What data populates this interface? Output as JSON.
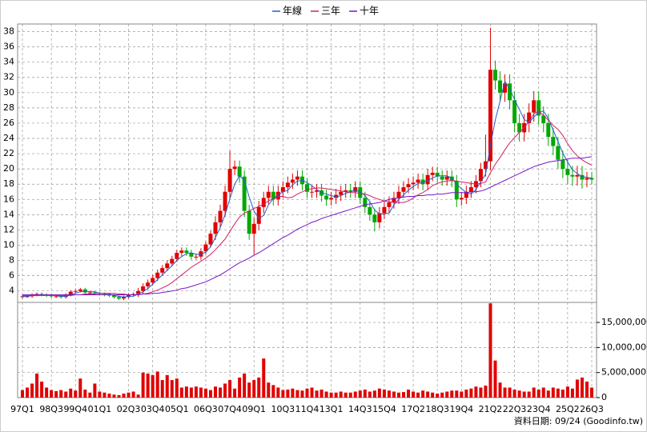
{
  "chart_data": {
    "type": "candlestick",
    "legend_position": "top",
    "grid": true,
    "source": "資料日期: 09/24  (Goodinfo.tw)",
    "categories": [
      "97Q1",
      null,
      null,
      null,
      null,
      null,
      "98Q3",
      null,
      null,
      null,
      null,
      "99Q4",
      null,
      null,
      null,
      null,
      "01Q1",
      null,
      null,
      null,
      null,
      null,
      "02Q3",
      null,
      null,
      null,
      null,
      "03Q4",
      null,
      null,
      null,
      null,
      "05Q1",
      null,
      null,
      null,
      null,
      null,
      "06Q3",
      null,
      null,
      null,
      null,
      "07Q4",
      null,
      null,
      null,
      null,
      "09Q1",
      null,
      null,
      null,
      null,
      null,
      "10Q3",
      null,
      null,
      null,
      null,
      "11Q4",
      null,
      null,
      null,
      null,
      "13Q1",
      null,
      null,
      null,
      null,
      null,
      "14Q3",
      null,
      null,
      null,
      null,
      "15Q4",
      null,
      null,
      null,
      null,
      null,
      "17Q2",
      null,
      null,
      null,
      null,
      "18Q3",
      null,
      null,
      null,
      null,
      "19Q4",
      null,
      null,
      null,
      null,
      null,
      "21Q2",
      null,
      null,
      null,
      null,
      "22Q3",
      null,
      null,
      null,
      null,
      "23Q4",
      null,
      null,
      null,
      null,
      null,
      "25Q2",
      null,
      null,
      null,
      null,
      "26Q3"
    ],
    "ylim": [
      2.5,
      39
    ],
    "yticks": [
      4,
      6,
      8,
      10,
      12,
      14,
      16,
      18,
      20,
      22,
      24,
      26,
      28,
      30,
      32,
      34,
      36,
      38
    ],
    "ohlc": {
      "up_color": "#e00000",
      "down_color": "#00a800",
      "open": [
        3.2,
        3.3,
        3.3,
        3.5,
        3.6,
        3.5,
        3.4,
        3.3,
        3.3,
        3.2,
        3.5,
        3.9,
        4.0,
        4.2,
        3.8,
        3.8,
        3.7,
        3.6,
        3.5,
        3.4,
        3.2,
        3.0,
        3.2,
        3.5,
        3.6,
        4.0,
        4.6,
        5.1,
        5.7,
        6.4,
        7.0,
        7.6,
        8.2,
        9.0,
        9.3,
        9.0,
        8.5,
        8.5,
        9.2,
        10.1,
        11.5,
        13.0,
        14.5,
        17.0,
        20.0,
        20.3,
        19.0,
        14.5,
        11.5,
        12.8,
        15.0,
        16.2,
        17.0,
        16.0,
        17.0,
        17.6,
        18.2,
        18.6,
        19.0,
        18.0,
        17.0,
        17.0,
        17.2,
        16.5,
        16.0,
        16.2,
        16.6,
        17.0,
        17.2,
        17.0,
        17.6,
        16.2,
        15.0,
        14.0,
        13.0,
        14.2,
        15.0,
        15.6,
        16.2,
        17.0,
        17.6,
        18.0,
        18.2,
        18.6,
        18.0,
        19.2,
        19.5,
        19.0,
        18.6,
        19.0,
        18.4,
        16.0,
        16.2,
        17.0,
        17.6,
        18.4,
        20.0,
        21.0,
        33.0,
        31.6,
        30.0,
        31.2,
        29.0,
        26.0,
        24.8,
        26.0,
        27.4,
        29.0,
        27.0,
        26.0,
        24.2,
        23.0,
        21.2,
        20.0,
        19.2,
        19.0,
        19.2,
        18.6,
        18.8
      ],
      "high": [
        3.5,
        3.5,
        3.7,
        3.8,
        3.8,
        3.7,
        3.6,
        3.5,
        3.5,
        3.7,
        4.1,
        4.2,
        4.4,
        4.4,
        4.0,
        4.0,
        3.9,
        3.8,
        3.7,
        3.6,
        3.4,
        3.4,
        3.7,
        3.8,
        4.4,
        5.0,
        5.5,
        6.1,
        6.8,
        7.4,
        8.0,
        8.6,
        9.4,
        9.7,
        9.7,
        9.4,
        8.9,
        9.6,
        10.5,
        11.9,
        13.8,
        15.3,
        17.8,
        22.4,
        21.1,
        21.1,
        19.8,
        15.3,
        13.6,
        15.8,
        17.0,
        17.8,
        17.8,
        17.8,
        18.4,
        19.0,
        19.4,
        19.8,
        19.8,
        18.8,
        17.8,
        18.0,
        18.0,
        17.3,
        17.0,
        17.4,
        17.8,
        18.0,
        18.0,
        18.4,
        18.4,
        17.0,
        15.8,
        14.8,
        15.0,
        15.8,
        16.4,
        17.0,
        17.8,
        18.4,
        18.8,
        19.0,
        19.4,
        19.4,
        20.0,
        20.3,
        20.3,
        19.8,
        19.8,
        19.8,
        19.2,
        17.0,
        17.8,
        18.4,
        19.2,
        20.8,
        24.5,
        38.5,
        34.2,
        32.8,
        32.4,
        32.4,
        30.2,
        27.2,
        27.2,
        28.6,
        30.2,
        30.2,
        28.2,
        27.2,
        25.4,
        24.2,
        22.4,
        21.2,
        20.4,
        20.4,
        20.4,
        19.6,
        19.6
      ],
      "low": [
        3.0,
        3.1,
        3.1,
        3.3,
        3.3,
        3.2,
        3.1,
        3.1,
        3.0,
        3.0,
        3.3,
        3.7,
        3.8,
        3.6,
        3.6,
        3.5,
        3.4,
        3.3,
        3.2,
        3.0,
        2.8,
        2.8,
        3.0,
        3.3,
        3.2,
        3.6,
        4.2,
        4.7,
        5.3,
        6.0,
        6.6,
        7.2,
        7.8,
        8.6,
        8.6,
        8.1,
        8.1,
        8.1,
        8.8,
        9.7,
        10.7,
        12.2,
        13.7,
        16.2,
        19.2,
        18.2,
        13.7,
        10.7,
        8.8,
        12.0,
        14.2,
        15.4,
        15.2,
        15.2,
        16.2,
        16.8,
        17.4,
        17.8,
        17.2,
        16.2,
        16.2,
        16.2,
        15.7,
        15.2,
        15.2,
        15.4,
        15.8,
        16.2,
        16.2,
        16.2,
        15.4,
        14.2,
        13.2,
        11.8,
        12.2,
        13.4,
        14.2,
        14.8,
        15.4,
        16.2,
        16.8,
        17.2,
        17.4,
        17.2,
        17.2,
        18.4,
        18.2,
        17.8,
        17.8,
        17.6,
        15.0,
        15.2,
        15.4,
        16.2,
        16.8,
        17.6,
        19.0,
        19.8,
        30.4,
        28.8,
        28.8,
        27.8,
        24.8,
        23.6,
        23.6,
        24.8,
        26.2,
        25.8,
        24.8,
        23.0,
        21.8,
        20.0,
        18.8,
        18.0,
        17.8,
        17.8,
        17.4,
        17.6,
        18.0
      ],
      "close": [
        3.3,
        3.3,
        3.5,
        3.6,
        3.5,
        3.4,
        3.3,
        3.3,
        3.2,
        3.5,
        3.9,
        4.0,
        4.2,
        3.8,
        3.8,
        3.7,
        3.6,
        3.5,
        3.4,
        3.2,
        3.0,
        3.2,
        3.5,
        3.6,
        4.0,
        4.6,
        5.1,
        5.7,
        6.4,
        7.0,
        7.6,
        8.2,
        9.0,
        9.3,
        9.0,
        8.5,
        8.5,
        9.2,
        10.1,
        11.5,
        13.0,
        14.5,
        17.0,
        20.0,
        20.3,
        19.0,
        14.5,
        11.5,
        12.8,
        15.0,
        16.2,
        17.0,
        16.0,
        17.0,
        17.6,
        18.2,
        18.6,
        19.0,
        18.0,
        17.0,
        17.0,
        17.2,
        16.5,
        16.0,
        16.2,
        16.6,
        17.0,
        17.2,
        17.0,
        17.6,
        16.2,
        15.0,
        14.0,
        13.0,
        14.2,
        15.0,
        15.6,
        16.2,
        17.0,
        17.6,
        18.0,
        18.2,
        18.6,
        18.0,
        19.2,
        19.5,
        19.0,
        18.6,
        19.0,
        18.4,
        16.0,
        16.2,
        17.0,
        17.6,
        18.4,
        20.0,
        21.0,
        33.0,
        31.6,
        30.0,
        31.2,
        29.0,
        26.0,
        24.8,
        26.0,
        27.4,
        29.0,
        27.0,
        26.0,
        24.2,
        23.0,
        21.2,
        20.0,
        19.2,
        19.0,
        19.2,
        18.6,
        18.8,
        18.6
      ]
    },
    "series": [
      {
        "name": "年線",
        "color": "#1f5fd0",
        "values": [
          3.3,
          3.3,
          3.4,
          3.4,
          3.5,
          3.5,
          3.5,
          3.4,
          3.3,
          3.3,
          3.5,
          3.7,
          3.9,
          4.0,
          3.9,
          3.9,
          3.7,
          3.7,
          3.6,
          3.4,
          3.3,
          3.2,
          3.3,
          3.3,
          3.6,
          3.9,
          4.3,
          4.9,
          5.5,
          6.1,
          6.7,
          7.3,
          8.0,
          8.5,
          8.9,
          9.0,
          8.8,
          8.8,
          9.1,
          9.8,
          11.0,
          12.3,
          14.0,
          16.1,
          18.0,
          19.1,
          18.5,
          16.3,
          14.5,
          13.5,
          13.9,
          15.3,
          16.1,
          16.6,
          17.0,
          17.2,
          17.9,
          18.4,
          18.5,
          18.2,
          17.8,
          17.3,
          16.9,
          16.7,
          16.5,
          16.3,
          16.5,
          16.8,
          17.0,
          17.2,
          17.0,
          16.5,
          15.7,
          14.6,
          14.1,
          14.1,
          14.2,
          15.3,
          16.0,
          16.6,
          17.2,
          17.7,
          18.1,
          18.2,
          18.5,
          18.8,
          19.1,
          19.1,
          19.1,
          18.8,
          18.0,
          17.4,
          16.9,
          16.7,
          17.3,
          18.3,
          19.3,
          23.1,
          26.4,
          28.9,
          31.5,
          30.5,
          29.1,
          27.8,
          26.5,
          26.1,
          26.8,
          27.4,
          27.6,
          26.6,
          25.1,
          23.6,
          22.1,
          20.9,
          19.9,
          19.4,
          19.0,
          18.9,
          18.8
        ]
      },
      {
        "name": "三年",
        "color": "#d0206a",
        "values": [
          3.4,
          3.4,
          3.4,
          3.4,
          3.4,
          3.4,
          3.4,
          3.4,
          3.4,
          3.4,
          3.4,
          3.5,
          3.5,
          3.6,
          3.6,
          3.6,
          3.7,
          3.7,
          3.7,
          3.7,
          3.6,
          3.6,
          3.5,
          3.5,
          3.5,
          3.6,
          3.7,
          3.9,
          4.1,
          4.4,
          4.7,
          5.1,
          5.6,
          6.1,
          6.6,
          7.1,
          7.5,
          7.9,
          8.3,
          8.8,
          9.4,
          10.1,
          10.8,
          11.8,
          12.8,
          13.7,
          14.2,
          14.5,
          14.8,
          15.1,
          15.4,
          15.8,
          16.1,
          16.4,
          16.4,
          16.2,
          16.3,
          16.7,
          17.0,
          17.3,
          17.4,
          17.5,
          17.5,
          17.4,
          17.3,
          17.2,
          17.1,
          17.0,
          16.9,
          16.9,
          16.8,
          16.7,
          16.5,
          16.2,
          16.0,
          15.8,
          15.7,
          15.6,
          15.6,
          15.6,
          15.8,
          16.2,
          16.6,
          16.9,
          17.3,
          17.8,
          18.1,
          18.3,
          18.4,
          18.5,
          18.4,
          18.3,
          18.2,
          18.1,
          18.0,
          18.1,
          18.3,
          19.5,
          20.6,
          21.5,
          22.5,
          23.4,
          24.1,
          24.8,
          25.4,
          26.2,
          27.2,
          27.6,
          27.0,
          26.4,
          25.7,
          25.2,
          24.4,
          23.3,
          22.4,
          21.7,
          21.2,
          20.8,
          20.5
        ]
      },
      {
        "name": "十年",
        "color": "#7a18c8",
        "values": [
          3.5,
          3.5,
          3.5,
          3.5,
          3.5,
          3.5,
          3.5,
          3.5,
          3.5,
          3.5,
          3.5,
          3.5,
          3.5,
          3.5,
          3.5,
          3.5,
          3.5,
          3.5,
          3.5,
          3.5,
          3.5,
          3.5,
          3.5,
          3.5,
          3.5,
          3.6,
          3.6,
          3.7,
          3.7,
          3.8,
          3.9,
          4.0,
          4.1,
          4.3,
          4.4,
          4.6,
          4.8,
          5.0,
          5.2,
          5.5,
          5.8,
          6.1,
          6.5,
          6.9,
          7.3,
          7.7,
          8.0,
          8.3,
          8.7,
          9.0,
          9.4,
          9.8,
          10.2,
          10.6,
          11.0,
          11.3,
          11.7,
          12.1,
          12.4,
          12.7,
          13.0,
          13.2,
          13.5,
          13.7,
          13.9,
          14.1,
          14.3,
          14.5,
          14.7,
          14.9,
          15.1,
          15.3,
          15.4,
          15.5,
          15.6,
          15.8,
          16.0,
          16.1,
          16.2,
          16.3,
          16.4,
          16.4,
          16.5,
          16.5,
          16.6,
          16.6,
          16.7,
          16.7,
          16.8,
          16.9,
          16.9,
          16.9,
          16.9,
          17.0,
          17.0,
          17.1,
          17.3,
          17.6,
          17.9,
          18.2,
          18.5,
          18.8,
          19.1,
          19.4,
          19.7,
          20.0,
          20.3,
          20.5,
          20.7,
          20.9,
          21.0,
          21.1,
          21.2,
          21.3,
          21.4,
          21.4,
          21.4,
          21.5,
          21.6
        ]
      }
    ],
    "volume": {
      "color": "#e00000",
      "ylim": [
        0,
        19000000
      ],
      "yticks": [
        0,
        {
          "value": 5000000,
          "label": "5,000,000"
        },
        {
          "value": 10000000,
          "label": "10,000,000"
        },
        {
          "value": 15000000,
          "label": "15,000,000"
        }
      ],
      "values": [
        1500000,
        2000000,
        2800000,
        4800000,
        3200000,
        2000000,
        1500000,
        1300000,
        1500000,
        1200000,
        1800000,
        1400000,
        3800000,
        1600000,
        1000000,
        2800000,
        1200000,
        1000000,
        800000,
        600000,
        500000,
        800000,
        1000000,
        1200000,
        600000,
        5000000,
        4800000,
        4500000,
        5200000,
        3500000,
        4500000,
        3500000,
        3800000,
        2000000,
        2200000,
        2000000,
        2200000,
        2000000,
        1800000,
        1500000,
        2200000,
        2000000,
        2800000,
        3500000,
        1800000,
        4000000,
        4800000,
        3000000,
        3500000,
        4000000,
        7800000,
        3000000,
        2500000,
        2000000,
        1500000,
        1600000,
        1800000,
        1500000,
        1400000,
        1800000,
        2000000,
        1400000,
        1600000,
        1200000,
        1000000,
        1000000,
        1200000,
        1000000,
        1000000,
        1200000,
        1400000,
        1600000,
        1200000,
        1400000,
        1800000,
        1600000,
        1400000,
        1200000,
        1000000,
        1100000,
        1600000,
        1200000,
        1000000,
        1400000,
        1200000,
        1000000,
        800000,
        1000000,
        1200000,
        1400000,
        1400000,
        1200000,
        1600000,
        1800000,
        2200000,
        2000000,
        2400000,
        18800000,
        7400000,
        3000000,
        2000000,
        2000000,
        1600000,
        1400000,
        1200000,
        1200000,
        2000000,
        1600000,
        2000000,
        1400000,
        2000000,
        1800000,
        1600000,
        2200000,
        1800000,
        3600000,
        4000000,
        3200000,
        2000000
      ]
    }
  }
}
